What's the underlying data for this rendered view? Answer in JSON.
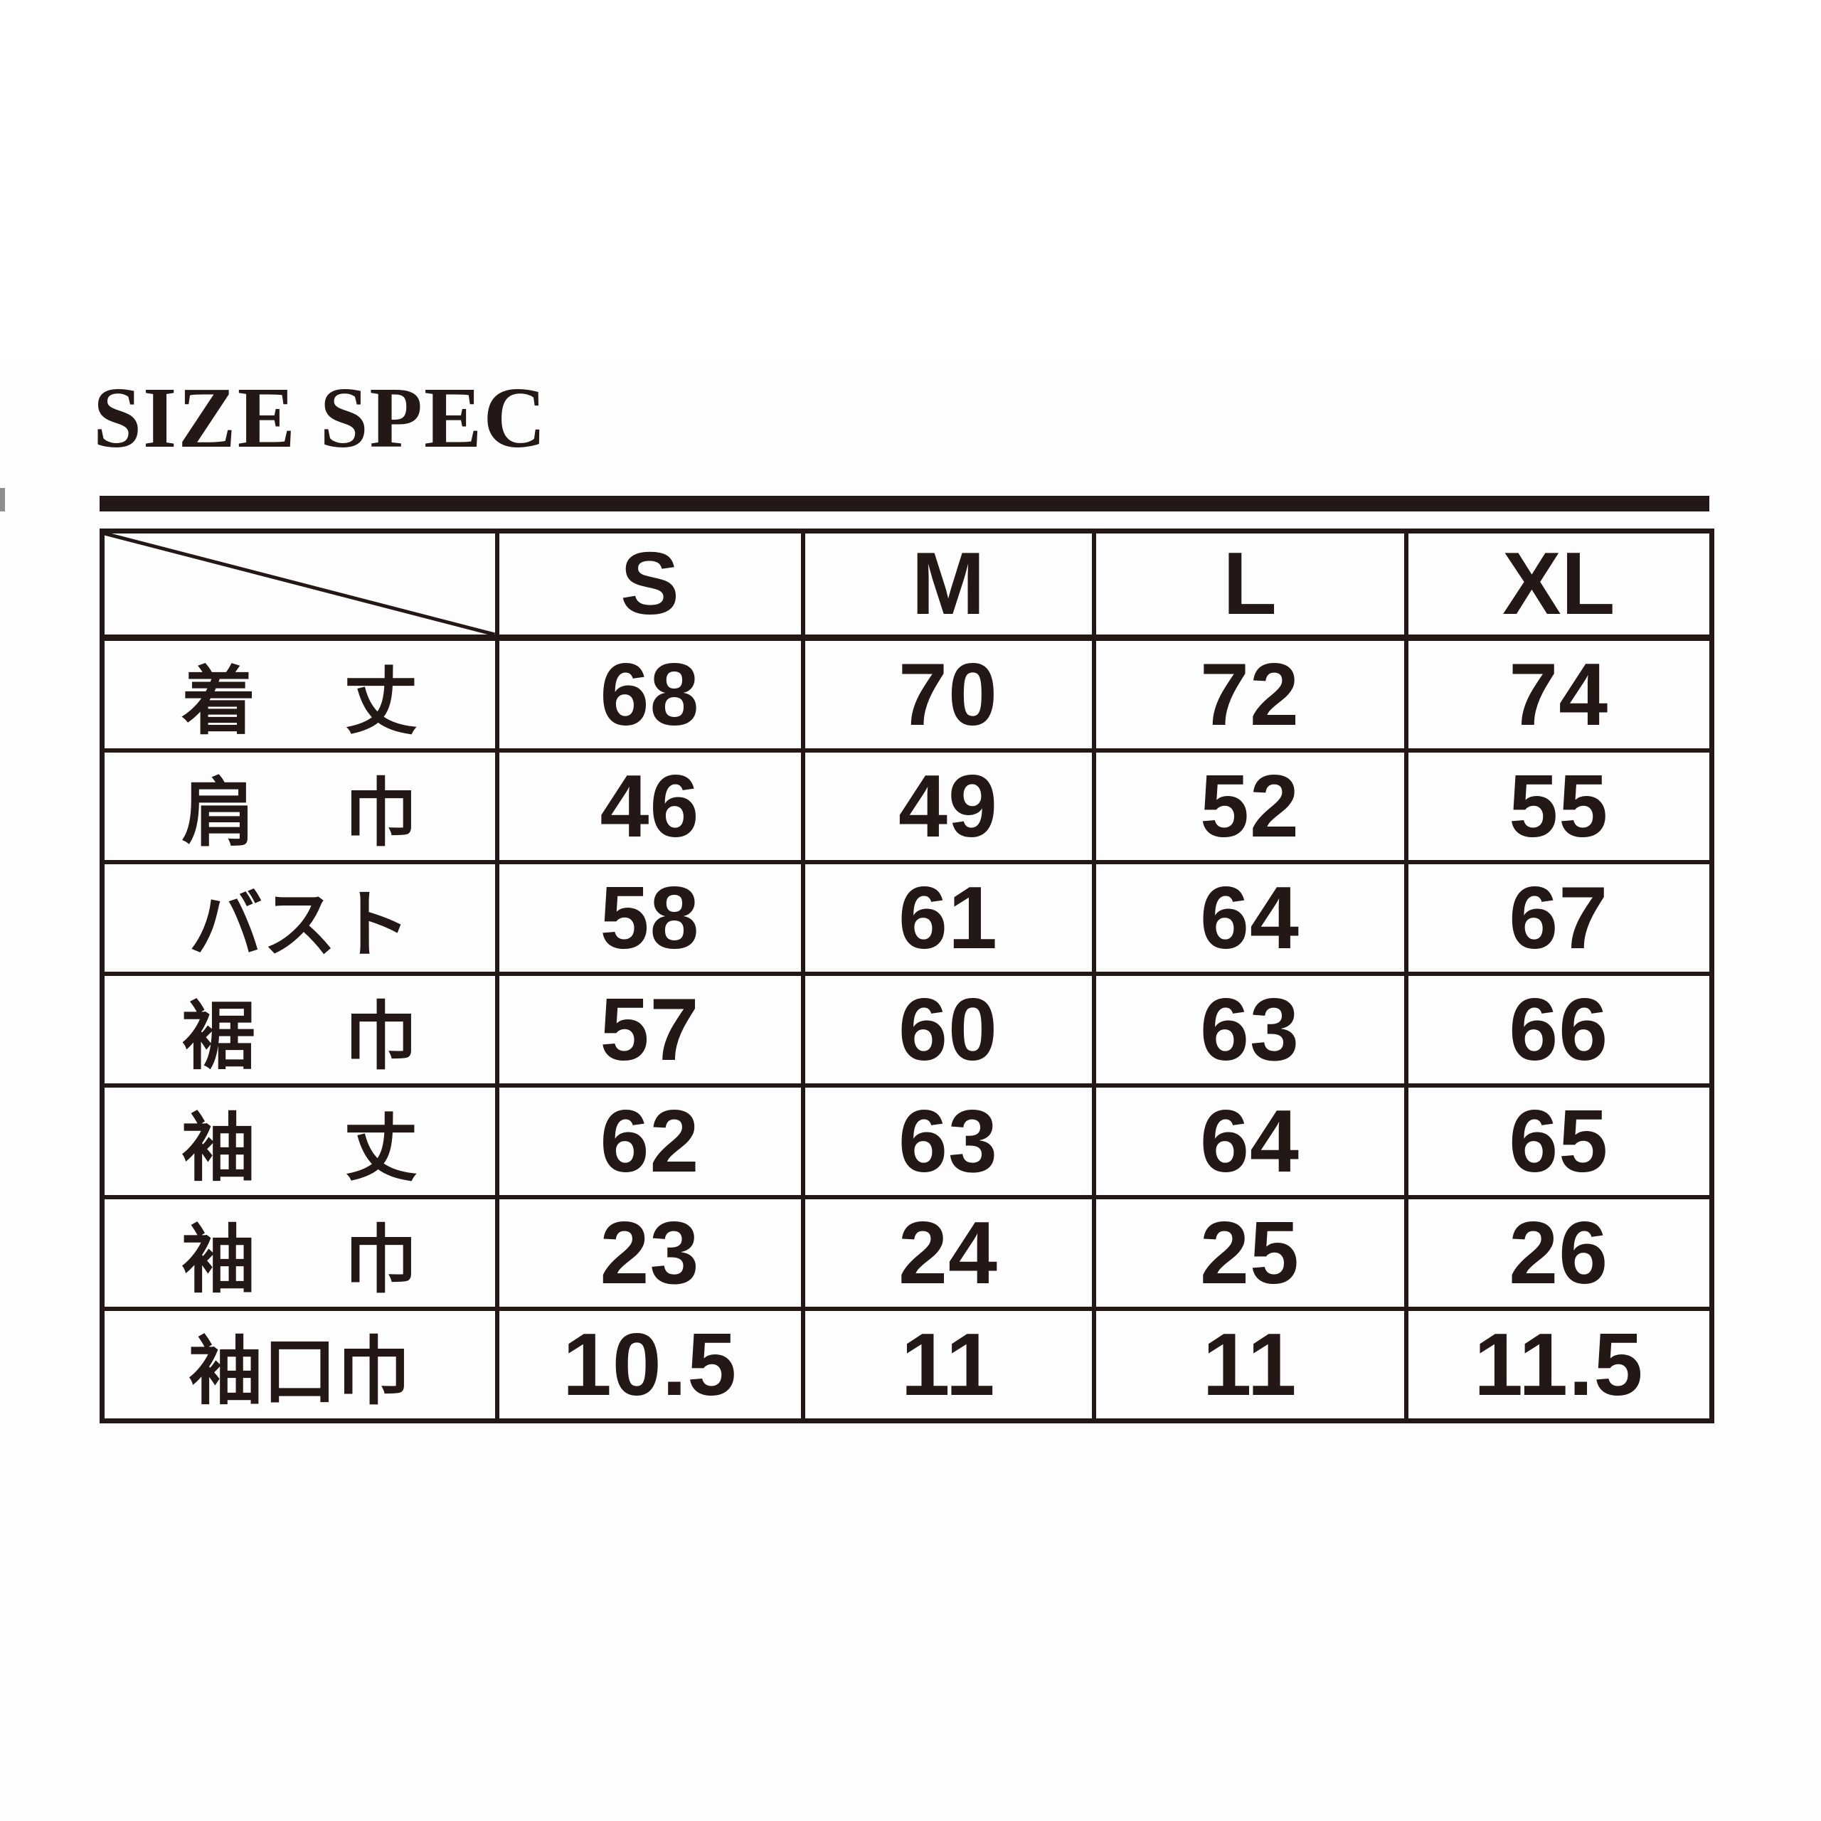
{
  "page": {
    "title": "SIZE SPEC"
  },
  "colors": {
    "ink": "#231815",
    "background": "#ffffff"
  },
  "table": {
    "type": "table",
    "corner_label": "",
    "columns": [
      "S",
      "M",
      "L",
      "XL"
    ],
    "rows": [
      {
        "label": "着丈",
        "values": [
          "68",
          "70",
          "72",
          "74"
        ]
      },
      {
        "label": "肩巾",
        "values": [
          "46",
          "49",
          "52",
          "55"
        ]
      },
      {
        "label": "バスト",
        "values": [
          "58",
          "61",
          "64",
          "67"
        ]
      },
      {
        "label": "裾巾",
        "values": [
          "57",
          "60",
          "63",
          "66"
        ]
      },
      {
        "label": "袖丈",
        "values": [
          "62",
          "63",
          "64",
          "65"
        ]
      },
      {
        "label": "袖巾",
        "values": [
          "23",
          "24",
          "25",
          "26"
        ]
      },
      {
        "label": "袖口巾",
        "values": [
          "10.5",
          "11",
          "11",
          "11.5"
        ]
      }
    ]
  }
}
